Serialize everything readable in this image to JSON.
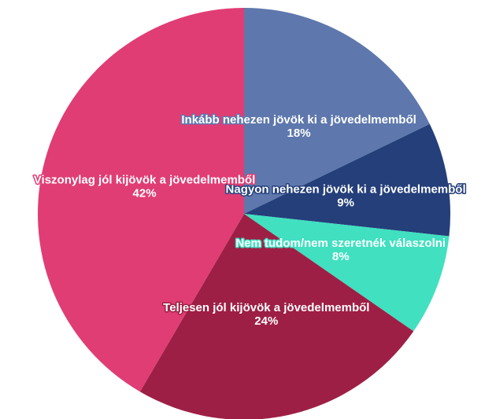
{
  "chart_data": {
    "type": "pie",
    "categories": [
      "Inkább nehezen jövök ki a jövedelmemből",
      "Nagyon nehezen jövök ki a jövedelmemből",
      "Nem tudom/nem szeretnék válaszolni",
      "Teljesen jól kijövök a jövedelmemből",
      "Viszonylag jól kijövök a jövedelmemből"
    ],
    "values": [
      18,
      9,
      8,
      24,
      42
    ],
    "value_labels": [
      "18%",
      "9%",
      "8%",
      "24%",
      "42%"
    ],
    "colors": [
      "#5e78ad",
      "#243f7a",
      "#40e0c0",
      "#9e1f45",
      "#e03d74"
    ]
  }
}
